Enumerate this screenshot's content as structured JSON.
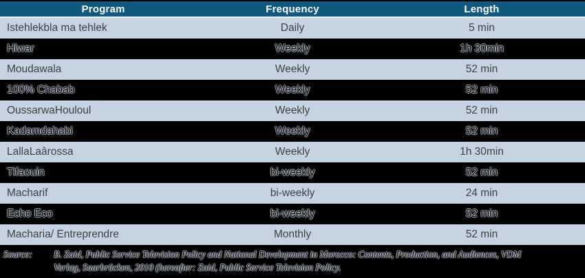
{
  "table": {
    "columns": [
      "Program",
      "Frequency",
      "Length"
    ],
    "rows": [
      {
        "program": "Istehlekbla ma tehlek",
        "frequency": "Daily",
        "length": "5 min"
      },
      {
        "program": "Hiwar",
        "frequency": "Weekly",
        "length": "1h 30min"
      },
      {
        "program": "Moudawala",
        "frequency": "Weekly",
        "length": "52 min"
      },
      {
        "program": "100% Chabab",
        "frequency": "Weekly",
        "length": "52 min"
      },
      {
        "program": "OussarwaHouloul",
        "frequency": "Weekly",
        "length": "52 min"
      },
      {
        "program": "Kadamdahabi",
        "frequency": "Weekly",
        "length": "52 min"
      },
      {
        "program": "LallaLaârossa",
        "frequency": "Weekly",
        "length": "1h 30min"
      },
      {
        "program": "Tifaouin",
        "frequency": "bi-weekly",
        "length": "52 min"
      },
      {
        "program": "Macharif",
        "frequency": "bi-weekly",
        "length": "24 min"
      },
      {
        "program": "Echo Eco",
        "frequency": "bi-weekly",
        "length": "52 min"
      },
      {
        "program": "Macharia/ Entreprendre",
        "frequency": "Monthly",
        "length": "52 min"
      }
    ]
  },
  "footer": {
    "label": "Source:",
    "line1_pre": "B. Zaid, ",
    "line1_title": "Public Service Television Policy and National Development in Morocco: Contents, Production, and Audiences",
    "line1_post": ", VDM",
    "line2_pre": "Verlag, Saarbrücken, 2010 (hereafter: Zaid, ",
    "line2_title": "Public Service Television Policy",
    "line2_post": "."
  },
  "colors": {
    "header_bg": "#0f5980",
    "header_text": "#ffffff",
    "row_light_bg": "#c6d3e2",
    "row_dark_bg": "#000000",
    "body_text": "#3d3f42"
  }
}
